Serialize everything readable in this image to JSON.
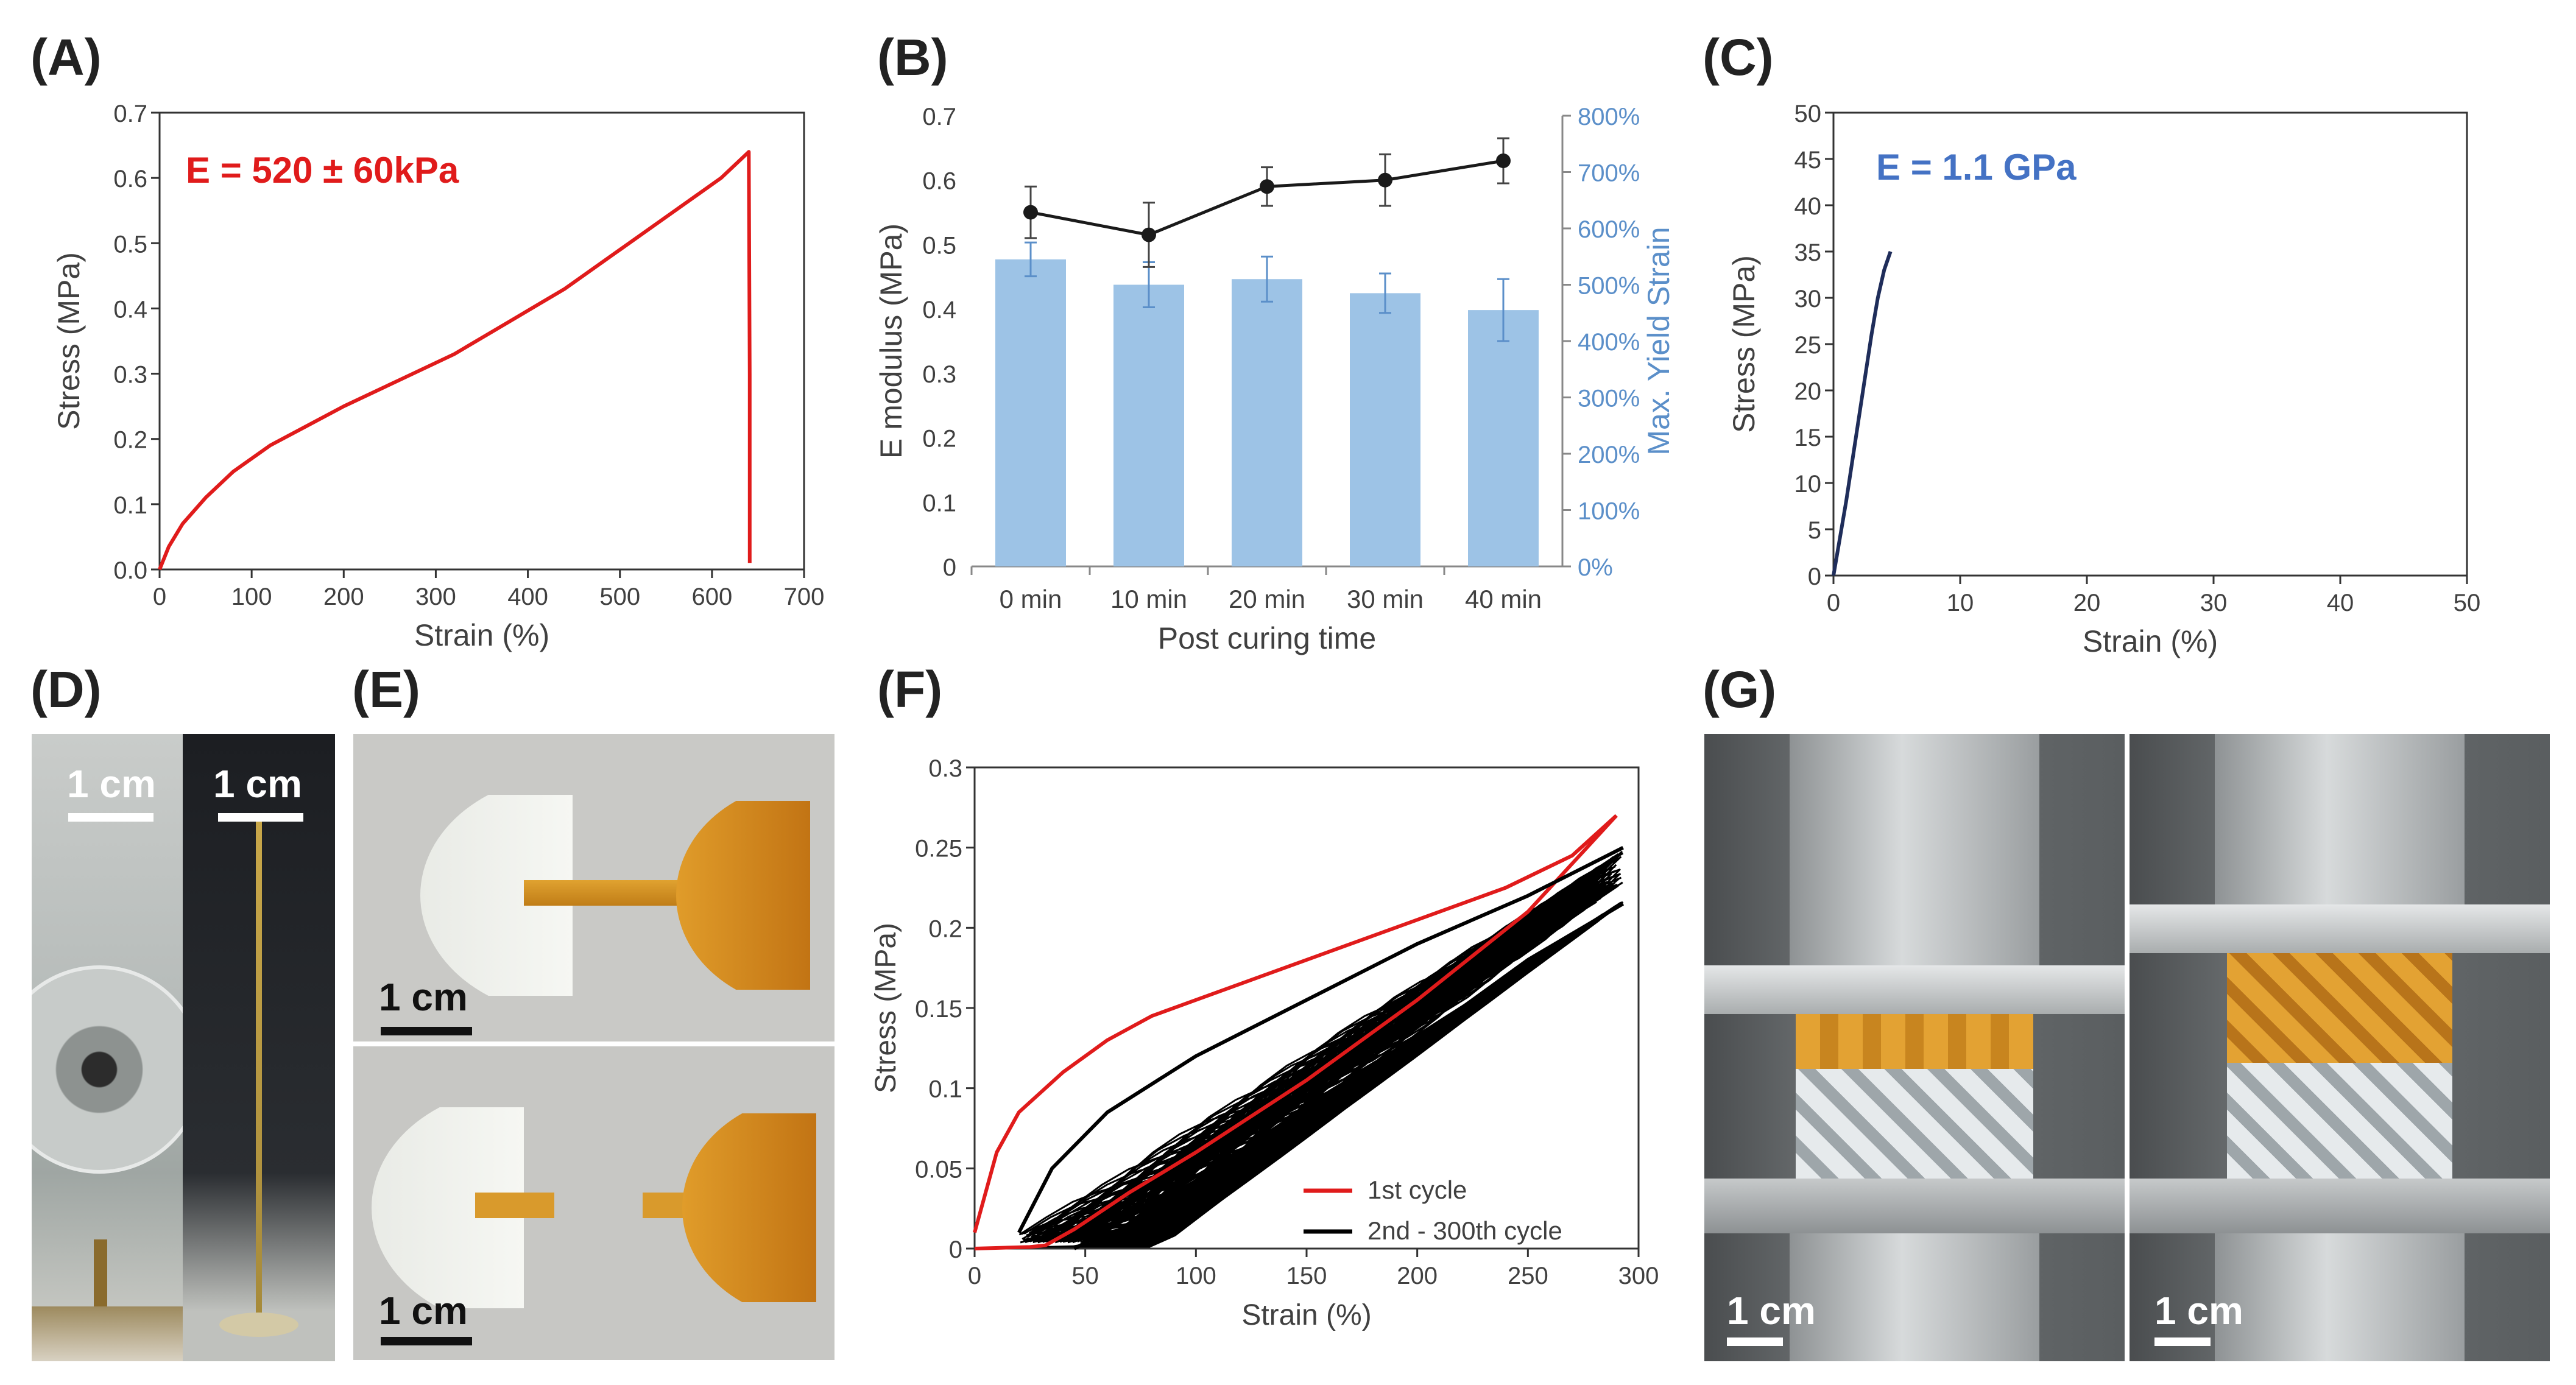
{
  "panels": {
    "A": "(A)",
    "B": "(B)",
    "C": "(C)",
    "D": "(D)",
    "E": "(E)",
    "F": "(F)",
    "G": "(G)"
  },
  "chart_data": [
    {
      "id": "A",
      "type": "line",
      "annotation": "E = 520 ± 60kPa",
      "xlabel": "Strain (%)",
      "ylabel": "Stress (MPa)",
      "xlim": [
        0,
        700
      ],
      "ylim": [
        0,
        0.7
      ],
      "xticks": [
        "0",
        "100",
        "200",
        "300",
        "400",
        "500",
        "600",
        "700"
      ],
      "yticks": [
        "0.0",
        "0.1",
        "0.2",
        "0.3",
        "0.4",
        "0.5",
        "0.6",
        "0.7"
      ],
      "series": [
        {
          "name": "stress-strain",
          "color": "#e01b1b",
          "x": [
            0,
            10,
            25,
            50,
            80,
            120,
            160,
            200,
            260,
            320,
            380,
            440,
            500,
            560,
            610,
            640,
            641,
            641
          ],
          "y": [
            0,
            0.035,
            0.07,
            0.11,
            0.15,
            0.19,
            0.22,
            0.25,
            0.29,
            0.33,
            0.38,
            0.43,
            0.49,
            0.55,
            0.6,
            0.64,
            0.3,
            0.01
          ]
        }
      ]
    },
    {
      "id": "B",
      "type": "bar+line",
      "xlabel": "Post curing time",
      "ylabel": "E modulus (MPa)",
      "y2label": "Max. Yield Strain",
      "categories": [
        "0 min",
        "10 min",
        "20 min",
        "30 min",
        "40 min"
      ],
      "ylim": [
        0,
        0.7
      ],
      "y2lim": [
        0,
        800
      ],
      "yticks": [
        "0",
        "0.1",
        "0.2",
        "0.3",
        "0.4",
        "0.5",
        "0.6",
        "0.7"
      ],
      "y2ticks": [
        "0%",
        "100%",
        "200%",
        "300%",
        "400%",
        "500%",
        "600%",
        "700%",
        "800%"
      ],
      "bars": {
        "name": "Max. Yield Strain",
        "color": "#9dc3e6",
        "values": [
          545,
          500,
          510,
          485,
          455
        ],
        "errors": [
          30,
          40,
          40,
          35,
          55
        ]
      },
      "line": {
        "name": "E modulus",
        "color": "#1a1a1a",
        "values": [
          0.55,
          0.515,
          0.59,
          0.6,
          0.63
        ],
        "errors": [
          0.04,
          0.05,
          0.03,
          0.04,
          0.035
        ]
      }
    },
    {
      "id": "C",
      "type": "line",
      "annotation": "E = 1.1 GPa",
      "xlabel": "Strain (%)",
      "ylabel": "Stress (MPa)",
      "xlim": [
        0,
        50
      ],
      "ylim": [
        0,
        50
      ],
      "xticks": [
        "0",
        "10",
        "20",
        "30",
        "40",
        "50"
      ],
      "yticks": [
        "0",
        "5",
        "10",
        "15",
        "20",
        "25",
        "30",
        "35",
        "40",
        "45",
        "50"
      ],
      "series": [
        {
          "name": "stress-strain",
          "color": "#1f2d5a",
          "x": [
            0,
            0.5,
            1,
            1.5,
            2,
            2.5,
            3,
            3.5,
            4,
            4.5
          ],
          "y": [
            0,
            4,
            8,
            12.5,
            17,
            21.5,
            26,
            30,
            33,
            35
          ]
        }
      ]
    },
    {
      "id": "F",
      "type": "line",
      "xlabel": "Strain (%)",
      "ylabel": "Stress (MPa)",
      "xlim": [
        0,
        300
      ],
      "ylim": [
        0,
        0.3
      ],
      "xticks": [
        "0",
        "50",
        "100",
        "150",
        "200",
        "250",
        "300"
      ],
      "yticks": [
        "0",
        "0.05",
        "0.1",
        "0.15",
        "0.2",
        "0.25",
        "0.3"
      ],
      "legend": [
        "1st              cycle",
        "2nd - 300th cycle"
      ],
      "series": [
        {
          "name": "1st cycle load",
          "color": "#e01b1b",
          "x": [
            0,
            10,
            20,
            40,
            60,
            80,
            100,
            130,
            160,
            200,
            240,
            270,
            290
          ],
          "y": [
            0.01,
            0.06,
            0.085,
            0.11,
            0.13,
            0.145,
            0.155,
            0.17,
            0.185,
            0.205,
            0.225,
            0.245,
            0.27
          ]
        },
        {
          "name": "1st cycle unload",
          "color": "#e01b1b",
          "x": [
            290,
            250,
            200,
            150,
            100,
            70,
            45,
            32,
            25,
            0
          ],
          "y": [
            0.27,
            0.21,
            0.155,
            0.105,
            0.06,
            0.035,
            0.012,
            0.002,
            0.001,
            0
          ]
        },
        {
          "name": "2nd-300th upper",
          "color": "#000000",
          "x": [
            20,
            35,
            60,
            100,
            150,
            200,
            250,
            293
          ],
          "y": [
            0.01,
            0.05,
            0.085,
            0.12,
            0.155,
            0.19,
            0.22,
            0.25
          ]
        },
        {
          "name": "2nd-300th lower",
          "color": "#000000",
          "x": [
            293,
            250,
            200,
            150,
            100,
            70,
            52,
            45
          ],
          "y": [
            0.215,
            0.18,
            0.13,
            0.085,
            0.045,
            0.02,
            0.005,
            0
          ]
        }
      ]
    }
  ],
  "scalebars": {
    "D1": "1 cm",
    "D2": "1 cm",
    "E1": "1 cm",
    "E2": "1 cm",
    "G1": "1 cm",
    "G2": "1 cm"
  }
}
